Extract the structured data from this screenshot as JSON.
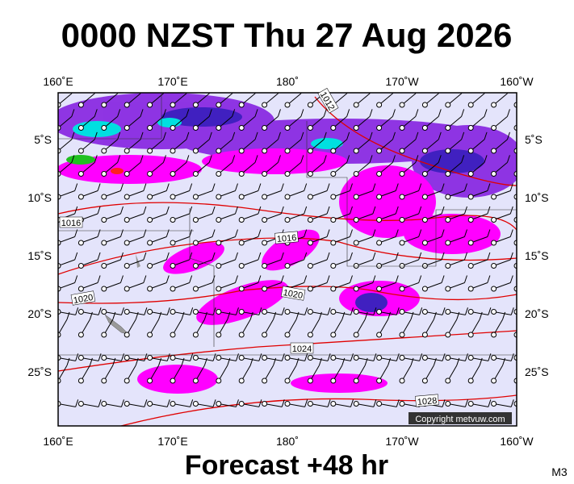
{
  "title": "0000 NZST Thu 27 Aug 2026",
  "lon_labels": [
    "160˚E",
    "170˚E",
    "180˚",
    "170˚W",
    "160˚W"
  ],
  "lat_labels": [
    "5˚S",
    "10˚S",
    "15˚S",
    "20˚S",
    "25˚S"
  ],
  "isobar_labels": [
    "1012",
    "1016",
    "1016",
    "1020",
    "1020",
    "1024",
    "1028"
  ],
  "copyright": "Copyright metvuw.com",
  "footer": "Forecast +48 hr",
  "model": "M3"
}
